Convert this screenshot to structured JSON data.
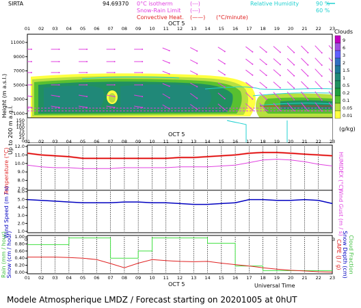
{
  "header": {
    "station": "SIRTA",
    "coords": "94.69370",
    "legend_isotherm": "0°C isotherm",
    "legend_snow_rain": "Snow-Rain Limit",
    "legend_convective": "Convective Heat.",
    "legend_convective_unit": "(°C/minute)",
    "legend_rh": "Relative Humidity",
    "rh_90": "90 %",
    "rh_60": "60 %",
    "sym_dash": "(---)",
    "sym_dash2": "(---)",
    "sym_line": "(——)"
  },
  "hours": [
    "01",
    "02",
    "03",
    "04",
    "05",
    "06",
    "07",
    "08",
    "09",
    "10",
    "11",
    "12",
    "13",
    "14",
    "15",
    "16",
    "17",
    "18",
    "19",
    "20",
    "21",
    "22",
    "23"
  ],
  "date_label": "OCT  5",
  "clouds_legend": {
    "title": "Clouds",
    "unit": "(g/kg)",
    "levels": [
      "9",
      "6",
      "3",
      "2",
      "1.5",
      "1",
      "0.5",
      "0.2",
      "0.1",
      "0.05",
      "0.01"
    ],
    "colors": [
      "#c000c0",
      "#a050e0",
      "#6060ff",
      "#3070c0",
      "#207898",
      "#208878",
      "#209060",
      "#20a040",
      "#58c030",
      "#b8e040",
      "#ffff40"
    ]
  },
  "charts": {
    "height_panel": {
      "ylabel": "Height  (m a.s.l.)",
      "ylabel2": "Up to 200 m a.g.l.",
      "yticks": [
        "11000",
        "9000",
        "7000",
        "5000",
        "3000",
        "1000"
      ],
      "yticks_low": [
        "150",
        "125",
        "100",
        "75",
        "50",
        "25",
        "0"
      ]
    },
    "temperature": {
      "ylabel": "Temperature (°C)",
      "ylabel_right": "HUMIDEX (°C)",
      "yticks": [
        "12.0",
        "11.0",
        "10.0",
        "9.0",
        "8.0",
        "7.0"
      ]
    },
    "wind": {
      "ylabel": "Wind Speed (m / s)",
      "ylabel_right": "Wind Gust (m / s)",
      "yticks": [
        "6.0",
        "5.0",
        "4.0",
        "3.0",
        "2.0",
        "1.0"
      ]
    },
    "rain": {
      "ylabel_a": "Rain (mm / hour)",
      "ylabel_b": "Snow (cm / hour)",
      "ylabel_right_a": "CAPE (J / g)",
      "ylabel_right_b": "Snow Depth (cm)",
      "ylabel_right_c": "Cloud Fraction",
      "yticks": [
        "1.00",
        "0.80",
        "0.60",
        "0.40",
        "0.20",
        "0.00"
      ],
      "xlabel": "Universal Time"
    }
  },
  "footer": "Modele Atmospherique LMDZ / Forecast starting on 20201005 at 0hUT",
  "chart_data": [
    {
      "type": "line",
      "title": "Temperature",
      "x": [
        "01",
        "02",
        "03",
        "04",
        "05",
        "06",
        "07",
        "08",
        "09",
        "10",
        "11",
        "12",
        "13",
        "14",
        "15",
        "16",
        "17",
        "18",
        "19",
        "20",
        "21",
        "22",
        "23"
      ],
      "ylim": [
        7,
        12
      ],
      "series": [
        {
          "name": "Temperature",
          "color": "#e00000",
          "values": [
            11.2,
            11.0,
            10.9,
            10.8,
            10.6,
            10.6,
            10.6,
            10.6,
            10.6,
            10.6,
            10.6,
            10.7,
            10.7,
            10.8,
            10.9,
            11.0,
            11.2,
            11.3,
            11.3,
            11.2,
            11.1,
            11.0,
            10.9
          ]
        },
        {
          "name": "HUMIDEX",
          "color": "#e040e0",
          "values": [
            9.8,
            9.6,
            9.5,
            9.5,
            9.4,
            9.4,
            9.4,
            9.5,
            9.5,
            9.5,
            9.5,
            9.6,
            9.6,
            9.6,
            9.7,
            9.8,
            10.1,
            10.4,
            10.5,
            10.4,
            10.2,
            9.9,
            9.7
          ]
        }
      ]
    },
    {
      "type": "line",
      "title": "Wind Speed",
      "x": [
        "01",
        "02",
        "03",
        "04",
        "05",
        "06",
        "07",
        "08",
        "09",
        "10",
        "11",
        "12",
        "13",
        "14",
        "15",
        "16",
        "17",
        "18",
        "19",
        "20",
        "21",
        "22",
        "23"
      ],
      "ylim": [
        1,
        6
      ],
      "series": [
        {
          "name": "Wind Speed",
          "color": "#0000c0",
          "values": [
            5.0,
            4.9,
            4.8,
            4.7,
            4.6,
            4.6,
            4.6,
            4.7,
            4.7,
            4.6,
            4.6,
            4.5,
            4.4,
            4.4,
            4.5,
            4.6,
            5.0,
            5.0,
            4.9,
            4.9,
            5.0,
            4.9,
            4.5
          ]
        }
      ]
    },
    {
      "type": "line",
      "title": "Rain / Cloud Fraction",
      "x": [
        "01",
        "02",
        "03",
        "04",
        "05",
        "06",
        "07",
        "08",
        "09",
        "10",
        "11",
        "12",
        "13",
        "14",
        "15",
        "16",
        "17",
        "18",
        "19",
        "20",
        "21",
        "22",
        "23"
      ],
      "ylim": [
        0,
        1
      ],
      "series": [
        {
          "name": "Rain",
          "color": "#e02020",
          "values": [
            0.43,
            0.43,
            0.43,
            0.42,
            0.4,
            0.36,
            0.25,
            0.13,
            0.26,
            0.36,
            0.33,
            0.31,
            0.3,
            0.31,
            0.26,
            0.22,
            0.18,
            0.13,
            0.09,
            0.06,
            0.04,
            0.02,
            0.01
          ]
        },
        {
          "name": "Cloud Fraction",
          "color": "#40e040",
          "values": [
            0.78,
            0.78,
            0.78,
            0.97,
            0.97,
            0.97,
            0.4,
            0.4,
            0.6,
            0.97,
            0.97,
            0.97,
            0.97,
            0.82,
            0.82,
            0.18,
            0.18,
            0.05,
            0.05,
            0.05,
            0.05,
            0.05,
            0.05
          ]
        }
      ]
    }
  ]
}
